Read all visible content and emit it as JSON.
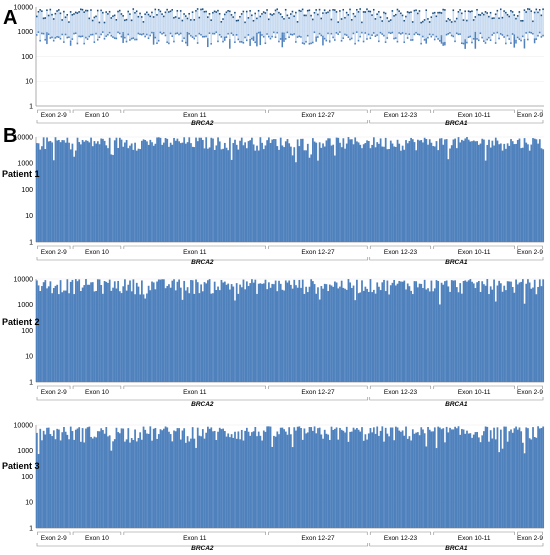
{
  "figure": {
    "panel_labels": [
      "A",
      "B"
    ]
  },
  "colors": {
    "bar": "#4f81bd",
    "bar_light": "#c7daf0",
    "bar_dark": "#1f4e79",
    "axis": "#9a9a9a"
  },
  "chart_data": [
    {
      "type": "bar",
      "panel": "A",
      "ylabel": "",
      "yscale": "log",
      "ylim": [
        1,
        10000
      ],
      "yticks": [
        "10000",
        "1000",
        "100",
        "10",
        "1"
      ],
      "series": [
        {
          "mean": 1000,
          "typical_range": [
            300,
            8000
          ]
        }
      ],
      "x_regions": [
        {
          "label": "Exon 2-9",
          "span": [
            0,
            0.07
          ]
        },
        {
          "label": "Exon 10",
          "span": [
            0.07,
            0.17
          ]
        },
        {
          "label": "Exon 11",
          "span": [
            0.17,
            0.455
          ]
        },
        {
          "label": "Exon 12-27",
          "span": [
            0.455,
            0.655
          ]
        },
        {
          "label": "Exon 12-23",
          "span": [
            0.655,
            0.78
          ]
        },
        {
          "label": "Exon 10-11",
          "span": [
            0.78,
            0.945
          ]
        },
        {
          "label": "Exon 2-9",
          "span": [
            0.945,
            1.0
          ]
        }
      ],
      "genes": [
        {
          "label": "BRCA2",
          "span": [
            0,
            0.655
          ]
        },
        {
          "label": "BRCA1",
          "span": [
            0.655,
            1.0
          ]
        }
      ]
    },
    {
      "type": "bar",
      "panel": "B",
      "row_label": "Patient 1",
      "yscale": "log",
      "ylim": [
        1,
        10000
      ],
      "yticks": [
        "10000",
        "1000",
        "100",
        "10",
        "1"
      ],
      "typical_range": [
        3000,
        10000
      ],
      "x_regions": [
        {
          "label": "Exon 2-9",
          "span": [
            0,
            0.07
          ]
        },
        {
          "label": "Exon 10",
          "span": [
            0.07,
            0.17
          ]
        },
        {
          "label": "Exon 11",
          "span": [
            0.17,
            0.455
          ]
        },
        {
          "label": "Exon 12-27",
          "span": [
            0.455,
            0.655
          ]
        },
        {
          "label": "Exon 12-23",
          "span": [
            0.655,
            0.78
          ]
        },
        {
          "label": "Exon 10-11",
          "span": [
            0.78,
            0.945
          ]
        },
        {
          "label": "Exon 2-9",
          "span": [
            0.945,
            1.0
          ]
        }
      ],
      "genes": [
        {
          "label": "BRCA2",
          "span": [
            0,
            0.655
          ]
        },
        {
          "label": "BRCA1",
          "span": [
            0.655,
            1.0
          ]
        }
      ]
    },
    {
      "type": "bar",
      "panel": "B",
      "row_label": "Patient 2",
      "yscale": "log",
      "ylim": [
        1,
        10000
      ],
      "yticks": [
        "10000",
        "1000",
        "100",
        "10",
        "1"
      ],
      "typical_range": [
        2500,
        10000
      ],
      "x_regions": [
        {
          "label": "Exon 2-9",
          "span": [
            0,
            0.07
          ]
        },
        {
          "label": "Exon 10",
          "span": [
            0.07,
            0.17
          ]
        },
        {
          "label": "Exon 11",
          "span": [
            0.17,
            0.455
          ]
        },
        {
          "label": "Exon 12-27",
          "span": [
            0.455,
            0.655
          ]
        },
        {
          "label": "Exon 12-23",
          "span": [
            0.655,
            0.78
          ]
        },
        {
          "label": "Exon 10-11",
          "span": [
            0.78,
            0.945
          ]
        },
        {
          "label": "Exon 2-9",
          "span": [
            0.945,
            1.0
          ]
        }
      ],
      "genes": [
        {
          "label": "BRCA2",
          "span": [
            0,
            0.655
          ]
        },
        {
          "label": "BRCA1",
          "span": [
            0.655,
            1.0
          ]
        }
      ]
    },
    {
      "type": "bar",
      "panel": "B",
      "row_label": "Patient 3",
      "yscale": "log",
      "ylim": [
        1,
        10000
      ],
      "yticks": [
        "10000",
        "1000",
        "100",
        "10",
        "1"
      ],
      "typical_range": [
        2000,
        9000
      ],
      "x_regions": [
        {
          "label": "Exon 2-9",
          "span": [
            0,
            0.07
          ]
        },
        {
          "label": "Exon 10",
          "span": [
            0.07,
            0.17
          ]
        },
        {
          "label": "Exon 11",
          "span": [
            0.17,
            0.455
          ]
        },
        {
          "label": "Exon 12-27",
          "span": [
            0.455,
            0.655
          ]
        },
        {
          "label": "Exon 12-23",
          "span": [
            0.655,
            0.78
          ]
        },
        {
          "label": "Exon 10-11",
          "span": [
            0.78,
            0.945
          ]
        },
        {
          "label": "Exon 2-9",
          "span": [
            0.945,
            1.0
          ]
        }
      ],
      "genes": [
        {
          "label": "BRCA2",
          "span": [
            0,
            0.655
          ]
        },
        {
          "label": "BRCA1",
          "span": [
            0.655,
            1.0
          ]
        }
      ]
    }
  ]
}
